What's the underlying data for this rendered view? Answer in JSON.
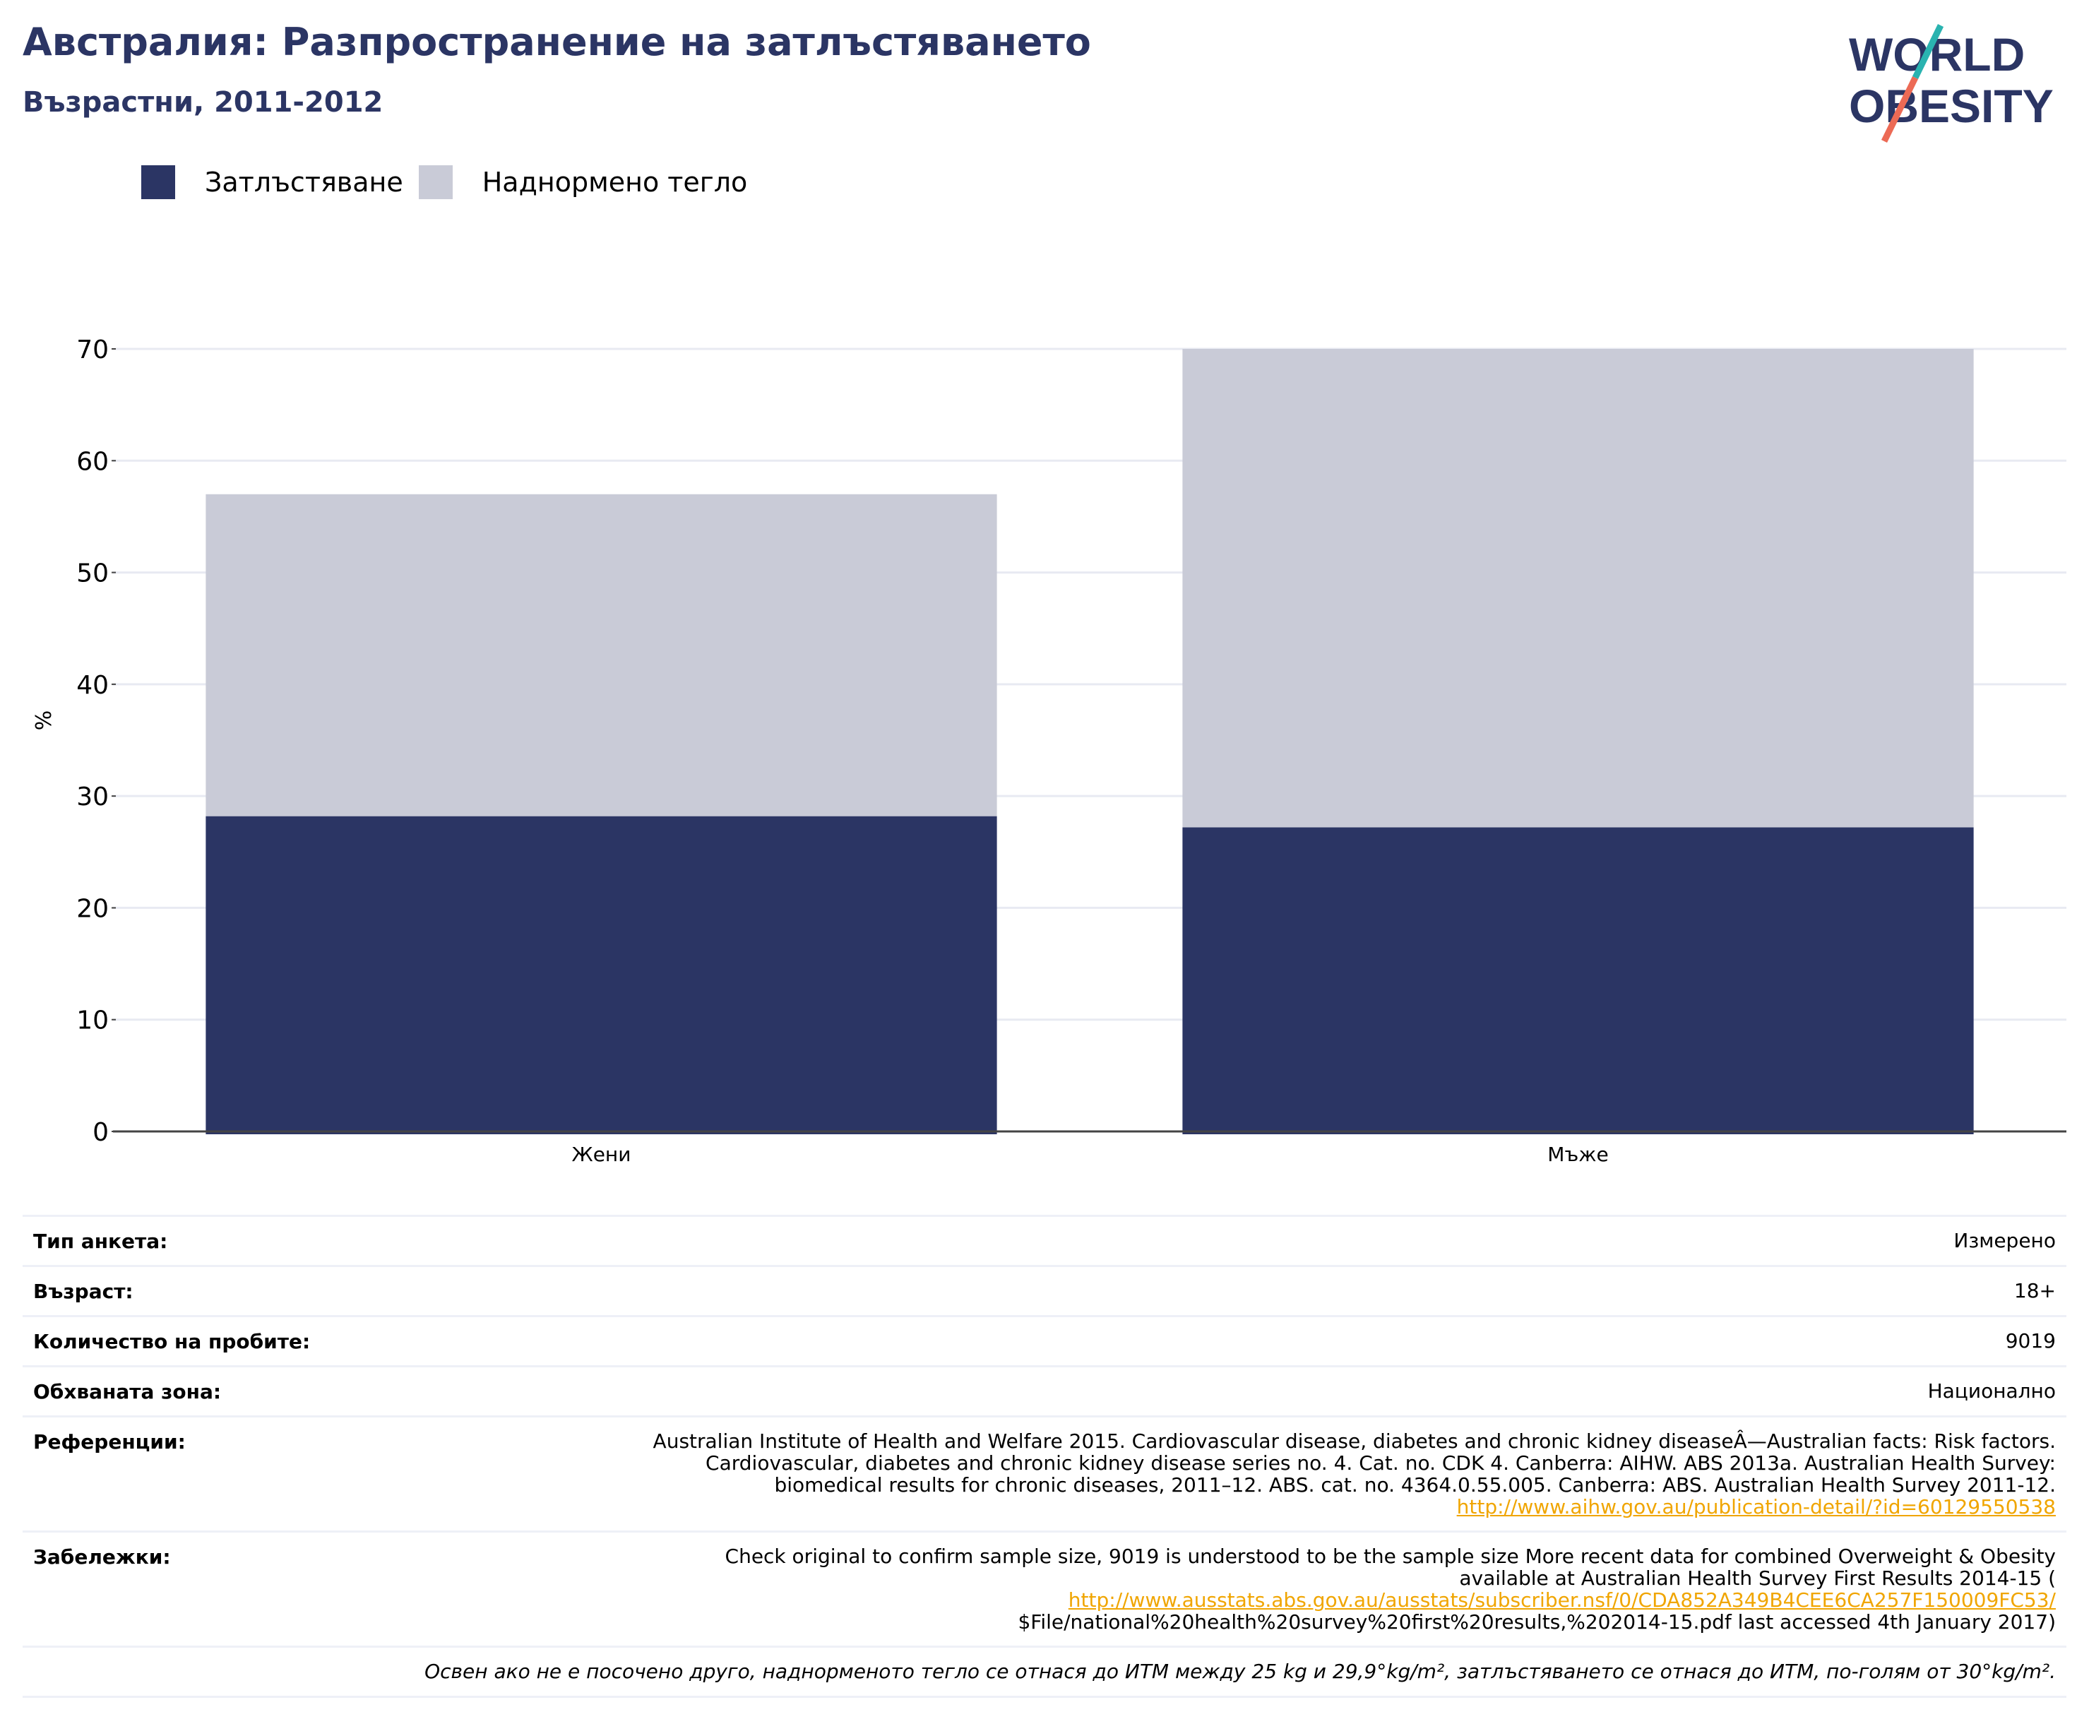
{
  "header": {
    "title": "Австралия: Разпространение на затлъстяването",
    "subtitle": "Възрастни, 2011-2012"
  },
  "logo": {
    "line1": "WORLD",
    "line2": "OBESITY",
    "colors": {
      "text": "#2b3564",
      "slash_top": "#2ab3b0",
      "slash_bottom": "#ec6a55"
    }
  },
  "colors": {
    "obesity": "#2b3564",
    "overweight": "#c9cbd7",
    "grid": "#e8eaf2",
    "axis": "#444444"
  },
  "chart_data": {
    "type": "bar",
    "stacked": true,
    "categories": [
      "Жени",
      "Мъже"
    ],
    "series": [
      {
        "name": "Затлъстяване",
        "values": [
          28.2,
          27.2
        ],
        "color": "#2b3564"
      },
      {
        "name": "Наднормено тегло",
        "values": [
          28.8,
          42.8
        ],
        "color": "#c9cbd7"
      }
    ],
    "ylabel": "%",
    "ylim": [
      0,
      70
    ],
    "yticks": [
      0,
      10,
      20,
      30,
      40,
      50,
      60,
      70
    ],
    "grid": true,
    "legend": "top-left"
  },
  "info": {
    "survey_type": {
      "label": "Тип анкета:",
      "value": "Измерено"
    },
    "age": {
      "label": "Възраст:",
      "value": "18+"
    },
    "sample": {
      "label": "Количество на пробите:",
      "value": "9019"
    },
    "area": {
      "label": "Обхваната зона:",
      "value": "Национално"
    },
    "references": {
      "label": "Референции:",
      "line1": "Australian Institute of Health and Welfare 2015. Cardiovascular disease, diabetes and chronic kidney diseaseÂ—Australian facts: Risk factors.",
      "line2": "Cardiovascular, diabetes and chronic kidney disease series no. 4. Cat. no. CDK 4. Canberra: AIHW. ABS 2013a. Australian Health Survey:",
      "line3": "biomedical results for chronic diseases, 2011–12. ABS. cat. no. 4364.0.55.005. Canberra: ABS. Australian Health Survey 2011-12.",
      "link": "http://www.aihw.gov.au/publication-detail/?id=60129550538"
    },
    "notes": {
      "label": "Забележки:",
      "line1": "Check original to confirm sample size, 9019 is understood to be the sample size More recent data for combined Overweight & Obesity",
      "line2": "available at Australian Health Survey First Results 2014-15 (",
      "link": "http://www.ausstats.abs.gov.au/ausstats/subscriber.nsf/0/CDA852A349B4CEE6CA257F150009FC53/",
      "line4": "$File/national%20health%20survey%20first%20results,%202014-15.pdf last accessed 4th January 2017)"
    },
    "footnote": "Освен ако не е посочено друго, наднорменото тегло се отнася до ИТМ между 25 kg и 29,9°kg/m², затлъстяването се отнася до ИТМ, по-голям от 30°kg/m²."
  }
}
